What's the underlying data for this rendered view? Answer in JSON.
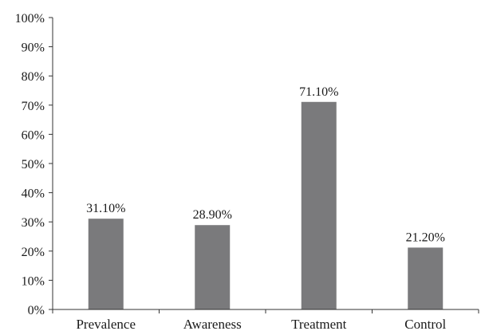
{
  "chart_data": {
    "type": "bar",
    "categories": [
      "Prevalence",
      "Awareness",
      "Treatment",
      "Control"
    ],
    "values": [
      31.1,
      28.9,
      71.1,
      21.2
    ],
    "data_labels": [
      "31.10%",
      "28.90%",
      "71.10%",
      "21.20%"
    ],
    "title": "",
    "xlabel": "",
    "ylabel": "",
    "ylim": [
      0,
      100
    ],
    "y_ticks": [
      "0%",
      "10%",
      "20%",
      "30%",
      "40%",
      "50%",
      "60%",
      "70%",
      "80%",
      "90%",
      "100%"
    ],
    "grid": false,
    "legend": "none",
    "bar_color": "#7a7a7c"
  }
}
